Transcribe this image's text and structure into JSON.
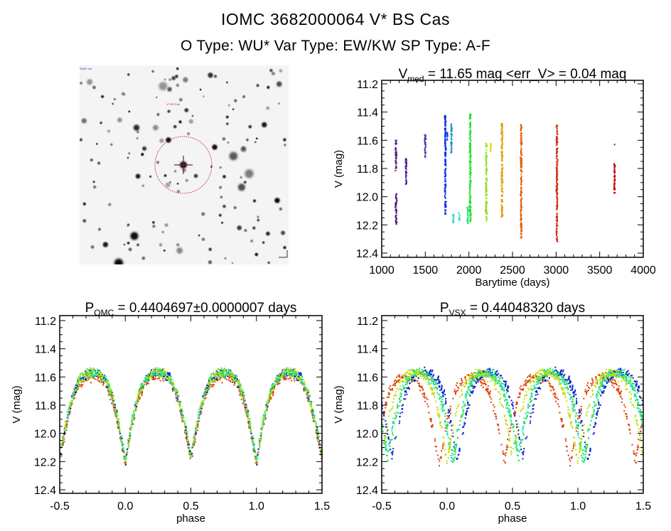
{
  "header": {
    "title": "IOMC 3682000064   V* BS Cas",
    "subtitle": "O Type: WU*  Var Type: EW/KW  SP Type: A-F"
  },
  "finder_chart": {
    "corner_text_top_left": "IOMC cat",
    "target_label": "V* BS Cas",
    "marker_color": "#c01020"
  },
  "chart_data": [
    {
      "type": "scatter",
      "title_main": "V",
      "title_sub": "med",
      "title_rest": " = 11.65 mag <err_V> = 0.04 mag",
      "xlabel": "Barytime (days)",
      "ylabel": "V (mag)",
      "xlim": [
        1000,
        4000
      ],
      "ylim": [
        12.43,
        11.175
      ],
      "y_inverted": true,
      "xticks": [
        "1000",
        "1500",
        "2000",
        "2500",
        "3000",
        "3500",
        "4000"
      ],
      "yticks": [
        "11.2",
        "11.4",
        "11.6",
        "11.8",
        "12.0",
        "12.2",
        "12.4"
      ],
      "clusters": [
        {
          "x": 1165,
          "v_range": [
            11.6,
            11.82
          ],
          "color": "#5a1a80"
        },
        {
          "x": 1165,
          "v_range": [
            11.98,
            12.2
          ],
          "color": "#5a1a80"
        },
        {
          "x": 1280,
          "v_range": [
            11.73,
            11.92
          ],
          "color": "#5020a0"
        },
        {
          "x": 1500,
          "v_range": [
            11.56,
            11.72
          ],
          "color": "#4040b0"
        },
        {
          "x": 1730,
          "v_range": [
            11.42,
            12.13
          ],
          "color": "#1030e0"
        },
        {
          "x": 1750,
          "v_range": [
            11.54,
            11.6
          ],
          "color": "#1050e0"
        },
        {
          "x": 1800,
          "v_range": [
            11.48,
            11.7
          ],
          "color": "#2090d0"
        },
        {
          "x": 1820,
          "v_range": [
            12.12,
            12.19
          ],
          "color": "#30d0d0"
        },
        {
          "x": 1890,
          "v_range": [
            12.11,
            12.17
          ],
          "color": "#30e0c0"
        },
        {
          "x": 1985,
          "v_range": [
            12.07,
            12.19
          ],
          "color": "#20e080"
        },
        {
          "x": 2015,
          "v_range": [
            11.4,
            12.19
          ],
          "color": "#20e020"
        },
        {
          "x": 2200,
          "v_range": [
            11.62,
            12.18
          ],
          "color": "#90e020"
        },
        {
          "x": 2250,
          "v_range": [
            11.62,
            11.68
          ],
          "color": "#e0e000"
        },
        {
          "x": 2380,
          "v_range": [
            11.48,
            12.15
          ],
          "color": "#e0a000"
        },
        {
          "x": 2600,
          "v_range": [
            11.49,
            12.3
          ],
          "color": "#e06010"
        },
        {
          "x": 3010,
          "v_range": [
            11.49,
            12.32
          ],
          "color": "#d03010"
        },
        {
          "x": 3670,
          "v_range": [
            11.63,
            11.63
          ],
          "color": "#c01010"
        },
        {
          "x": 3670,
          "v_range": [
            11.76,
            11.98
          ],
          "color": "#c01010"
        }
      ]
    },
    {
      "type": "scatter",
      "title_main": "P",
      "title_sub": "OMC",
      "title_rest": " = 0.4404697±0.0000007 days",
      "xlabel": "phase",
      "ylabel": "V (mag)",
      "xlim": [
        -0.5,
        1.5
      ],
      "ylim": [
        12.425,
        11.165
      ],
      "y_inverted": true,
      "xticks": [
        "-0.5",
        "0.0",
        "0.5",
        "1.0",
        "1.5"
      ],
      "yticks": [
        "11.2",
        "11.4",
        "11.6",
        "11.8",
        "12.0",
        "12.2",
        "12.4"
      ],
      "mean_curve": {
        "phase": [
          0,
          0.05,
          0.1,
          0.15,
          0.2,
          0.25,
          0.3,
          0.35,
          0.4,
          0.45,
          0.5,
          0.55,
          0.6,
          0.65,
          0.7,
          0.75,
          0.8,
          0.85,
          0.9,
          0.95
        ],
        "v": [
          12.2,
          11.93,
          11.73,
          11.62,
          11.58,
          11.57,
          11.58,
          11.62,
          11.73,
          11.92,
          12.16,
          11.92,
          11.73,
          11.62,
          11.58,
          11.57,
          11.58,
          11.62,
          11.73,
          11.93
        ]
      },
      "series_colors": [
        "#e04000",
        "#20e040",
        "#0020d0",
        "#20e0a0",
        "#c0e000"
      ]
    },
    {
      "type": "scatter",
      "title_main": "P",
      "title_sub": "VSX",
      "title_rest": " = 0.44048320 days",
      "xlabel": "phase",
      "ylabel": "V (mag)",
      "xlim": [
        -0.5,
        1.5
      ],
      "ylim": [
        12.425,
        11.165
      ],
      "y_inverted": true,
      "xticks": [
        "-0.5",
        "0.0",
        "0.5",
        "1.0",
        "1.5"
      ],
      "yticks": [
        "11.2",
        "11.4",
        "11.6",
        "11.8",
        "12.0",
        "12.2",
        "12.4"
      ],
      "mean_curve": {
        "phase": [
          0,
          0.05,
          0.1,
          0.15,
          0.2,
          0.25,
          0.3,
          0.35,
          0.4,
          0.45,
          0.5,
          0.55,
          0.6,
          0.65,
          0.7,
          0.75,
          0.8,
          0.85,
          0.9,
          0.95
        ],
        "v": [
          12.2,
          11.93,
          11.73,
          11.62,
          11.58,
          11.57,
          11.58,
          11.62,
          11.73,
          11.92,
          12.16,
          11.92,
          11.73,
          11.62,
          11.58,
          11.57,
          11.58,
          11.62,
          11.73,
          11.93
        ]
      },
      "series_colors": [
        "#e04000",
        "#20e040",
        "#0020d0",
        "#20e0a0",
        "#c0e000"
      ],
      "series_phase_shift": [
        -0.06,
        0.05,
        0.08,
        0.04,
        0.0
      ]
    }
  ]
}
